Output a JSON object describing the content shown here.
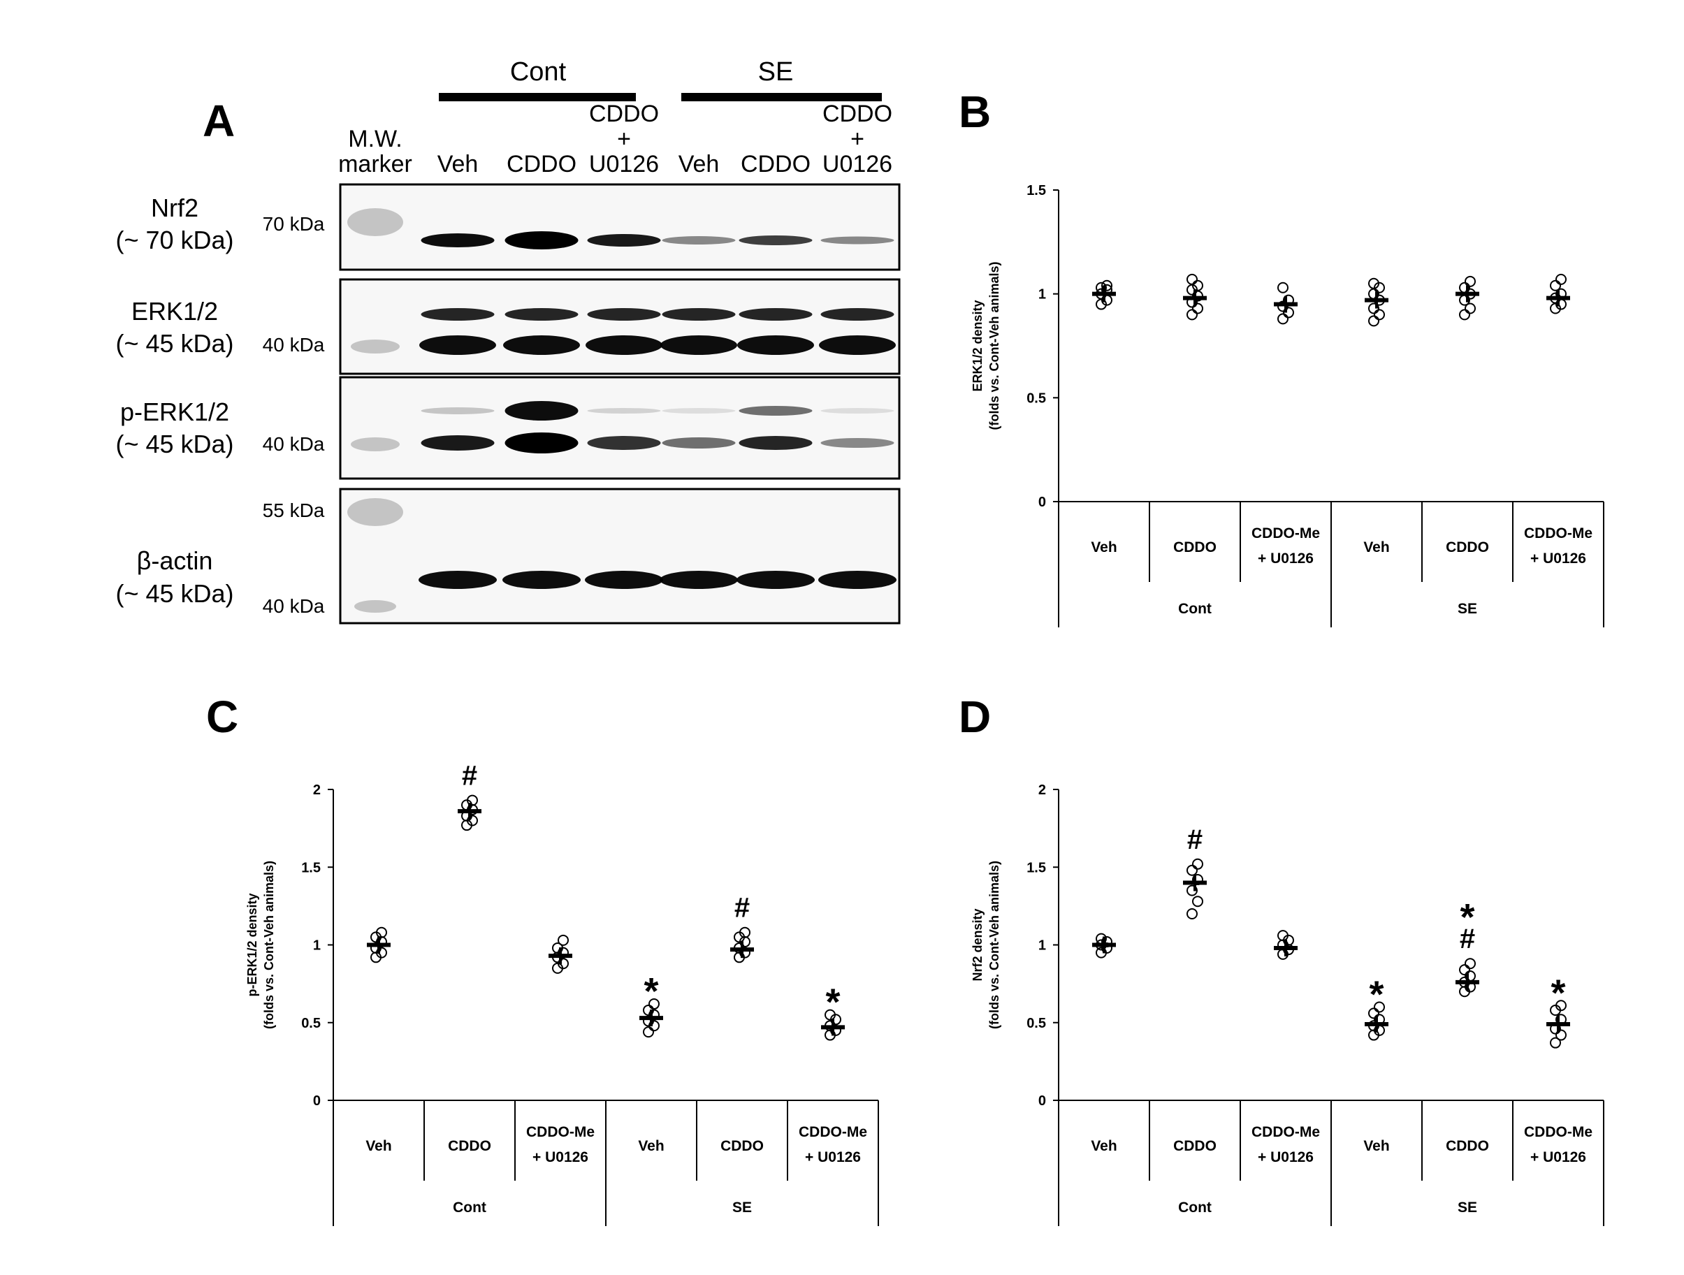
{
  "panelA": {
    "letter": "A",
    "groups": [
      "Cont",
      "SE"
    ],
    "lanes": [
      {
        "name": "M.W. marker",
        "lines": [
          "M.W.",
          "marker"
        ]
      },
      {
        "name": "Cont Veh",
        "lines": [
          "Veh"
        ]
      },
      {
        "name": "Cont CDDO",
        "lines": [
          "CDDO"
        ]
      },
      {
        "name": "Cont CDDO + U0126",
        "lines": [
          "CDDO",
          "+",
          "U0126"
        ]
      },
      {
        "name": "SE Veh",
        "lines": [
          "Veh"
        ]
      },
      {
        "name": "SE CDDO",
        "lines": [
          "CDDO"
        ]
      },
      {
        "name": "SE CDDO + U0126",
        "lines": [
          "CDDO",
          "+",
          "U0126"
        ]
      }
    ],
    "blots": [
      {
        "name": "nrf2",
        "label": [
          "Nrf2",
          "(~ 70 kDa)"
        ],
        "mw": [
          "70 kDa"
        ]
      },
      {
        "name": "erk",
        "label": [
          "ERK1/2",
          "(~ 45 kDa)"
        ],
        "mw": [
          "40 kDa"
        ]
      },
      {
        "name": "perk",
        "label": [
          "p-ERK1/2",
          "(~ 45 kDa)"
        ],
        "mw": [
          "40 kDa"
        ]
      },
      {
        "name": "actin",
        "label": [
          "β-actin",
          "(~ 45 kDa)"
        ],
        "mw": [
          "55 kDa",
          "40 kDa"
        ]
      }
    ]
  },
  "chart_data": [
    {
      "panel": "B",
      "type": "scatter",
      "ylabel": [
        "ERK1/2 density",
        "(folds vs. Cont-Veh animals)"
      ],
      "ylim": [
        0,
        1.5
      ],
      "yticks": [
        "0",
        "0.5",
        "1",
        "1.5"
      ],
      "categories": [
        [
          "Veh"
        ],
        [
          "CDDO"
        ],
        [
          "CDDO-Me",
          "+ U0126"
        ],
        [
          "Veh"
        ],
        [
          "CDDO"
        ],
        [
          "CDDO-Me",
          "+ U0126"
        ]
      ],
      "groups": [
        "Cont",
        "SE"
      ],
      "means": [
        1.0,
        0.98,
        0.95,
        0.97,
        1.0,
        0.98
      ],
      "points": [
        [
          0.95,
          0.97,
          1.0,
          1.02,
          1.03,
          1.04
        ],
        [
          0.9,
          0.93,
          0.96,
          0.99,
          1.02,
          1.04,
          1.07
        ],
        [
          0.88,
          0.91,
          0.94,
          0.97,
          1.03
        ],
        [
          0.87,
          0.9,
          0.93,
          0.97,
          1.0,
          1.03,
          1.05
        ],
        [
          0.9,
          0.93,
          0.97,
          1.0,
          1.03,
          1.06
        ],
        [
          0.93,
          0.95,
          0.98,
          1.0,
          1.04,
          1.07
        ]
      ],
      "annotations": [
        "",
        "",
        "",
        "",
        "",
        ""
      ]
    },
    {
      "panel": "C",
      "type": "scatter",
      "ylabel": [
        "p-ERK1/2 density",
        "(folds vs. Cont-Veh animals)"
      ],
      "ylim": [
        0,
        2
      ],
      "yticks": [
        "0",
        "0.5",
        "1",
        "1.5",
        "2"
      ],
      "categories": [
        [
          "Veh"
        ],
        [
          "CDDO"
        ],
        [
          "CDDO-Me",
          "+ U0126"
        ],
        [
          "Veh"
        ],
        [
          "CDDO"
        ],
        [
          "CDDO-Me",
          "+ U0126"
        ]
      ],
      "groups": [
        "Cont",
        "SE"
      ],
      "means": [
        1.0,
        1.86,
        0.93,
        0.53,
        0.97,
        0.47
      ],
      "points": [
        [
          0.92,
          0.95,
          0.98,
          1.02,
          1.05,
          1.08
        ],
        [
          1.77,
          1.8,
          1.83,
          1.87,
          1.9,
          1.93
        ],
        [
          0.85,
          0.88,
          0.92,
          0.95,
          0.98,
          1.03
        ],
        [
          0.44,
          0.48,
          0.51,
          0.55,
          0.58,
          0.62
        ],
        [
          0.92,
          0.95,
          0.98,
          1.02,
          1.05,
          1.08
        ],
        [
          0.42,
          0.45,
          0.48,
          0.52,
          0.55
        ]
      ],
      "annotations": [
        "",
        "#",
        "",
        "*",
        "#",
        "*"
      ]
    },
    {
      "panel": "D",
      "type": "scatter",
      "ylabel": [
        "Nrf2 density",
        "(folds vs. Cont-Veh animals)"
      ],
      "ylim": [
        0,
        2
      ],
      "yticks": [
        "0",
        "0.5",
        "1",
        "1.5",
        "2"
      ],
      "categories": [
        [
          "Veh"
        ],
        [
          "CDDO"
        ],
        [
          "CDDO-Me",
          "+ U0126"
        ],
        [
          "Veh"
        ],
        [
          "CDDO"
        ],
        [
          "CDDO-Me",
          "+ U0126"
        ]
      ],
      "groups": [
        "Cont",
        "SE"
      ],
      "means": [
        1.0,
        1.4,
        0.98,
        0.49,
        0.76,
        0.49
      ],
      "points": [
        [
          0.95,
          0.98,
          1.0,
          1.02,
          1.04
        ],
        [
          1.2,
          1.28,
          1.35,
          1.42,
          1.48,
          1.52
        ],
        [
          0.94,
          0.97,
          1.0,
          1.03,
          1.06
        ],
        [
          0.42,
          0.45,
          0.48,
          0.52,
          0.56,
          0.6
        ],
        [
          0.7,
          0.73,
          0.76,
          0.8,
          0.84,
          0.88
        ],
        [
          0.37,
          0.42,
          0.46,
          0.52,
          0.58,
          0.61
        ]
      ],
      "annotations": [
        "",
        "#",
        "",
        "*",
        "*\n#",
        "*"
      ]
    }
  ]
}
